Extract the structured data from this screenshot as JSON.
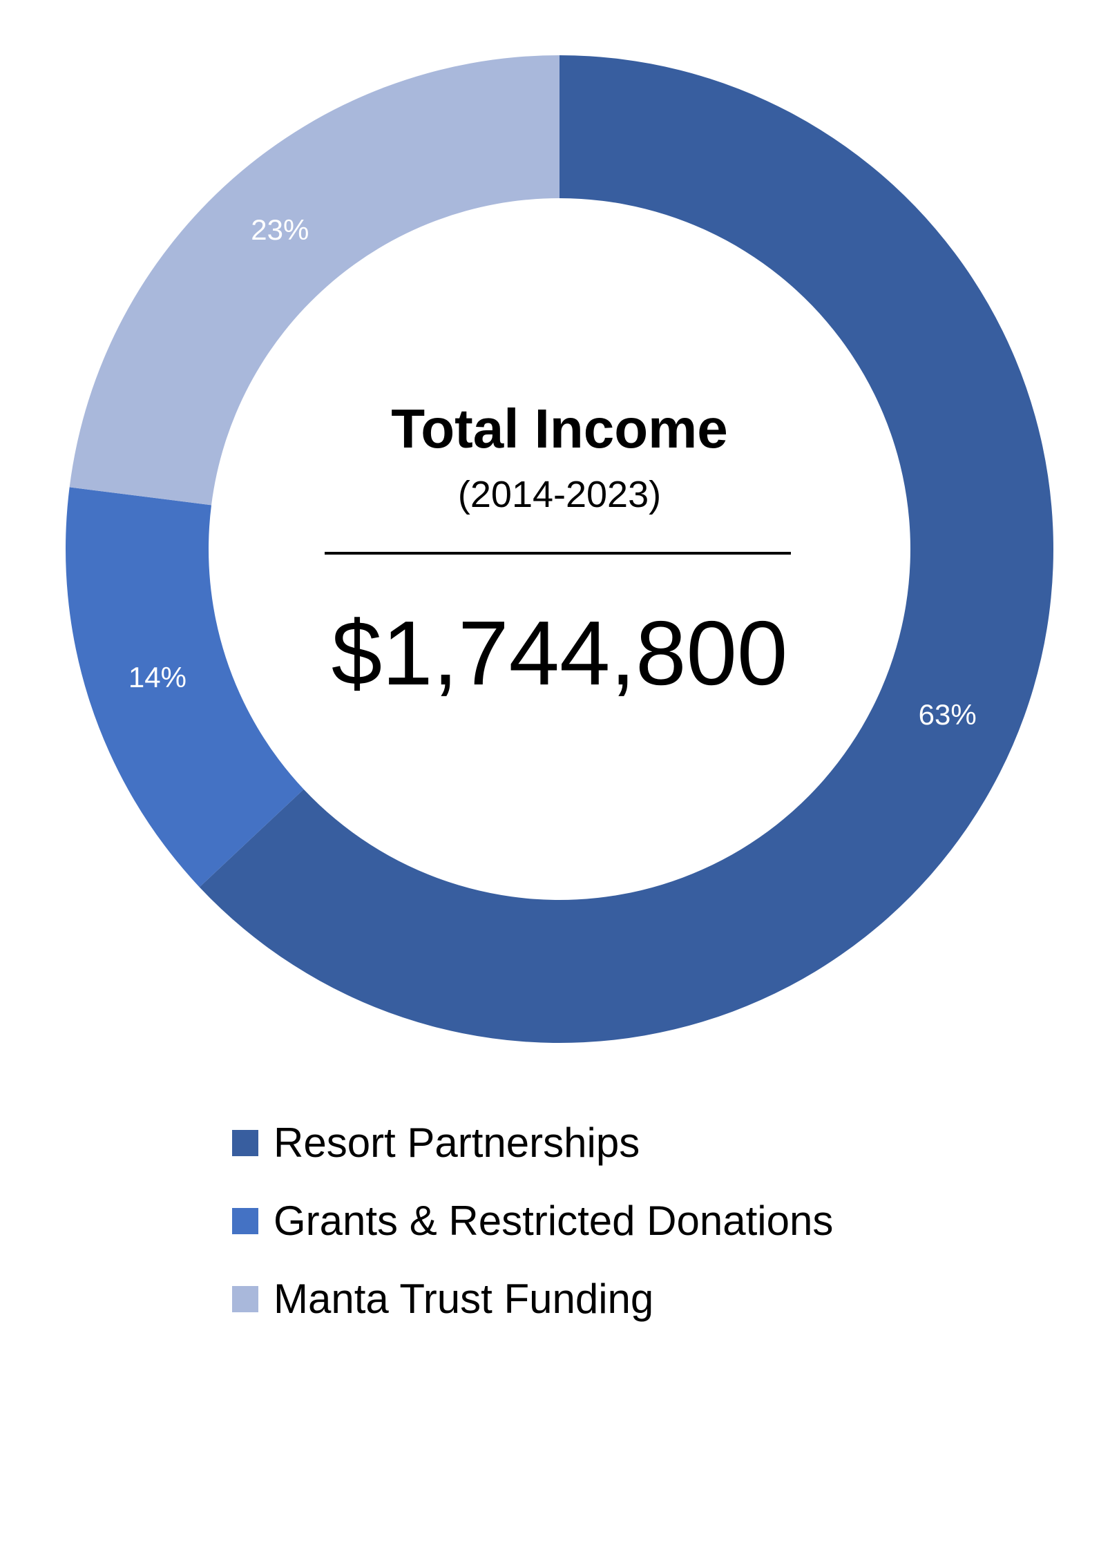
{
  "chart_data": {
    "type": "pie",
    "variant": "donut",
    "center": {
      "title": "Total Income",
      "subtitle": "(2014-2023)",
      "total": "$1,744,800"
    },
    "slices": [
      {
        "label": "Resort Partnerships",
        "value": 63,
        "value_label": "63%",
        "color": "#385E9F"
      },
      {
        "label": "Grants & Restricted Donations",
        "value": 14,
        "value_label": "14%",
        "color": "#4472C4"
      },
      {
        "label": "Manta Trust Funding",
        "value": 23,
        "value_label": "23%",
        "color": "#A9B8DB"
      }
    ],
    "legend_position": "bottom"
  }
}
